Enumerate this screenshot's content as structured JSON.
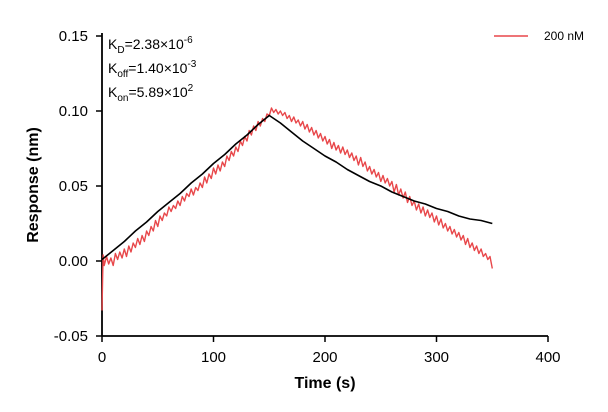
{
  "chart_data": {
    "type": "line",
    "xlabel": "Time (s)",
    "ylabel": "Response (nm)",
    "xlim": [
      0,
      400
    ],
    "ylim": [
      -0.05,
      0.15
    ],
    "x_ticks": [
      0,
      100,
      200,
      300,
      400
    ],
    "y_ticks": [
      -0.05,
      0.0,
      0.05,
      0.1,
      0.15
    ],
    "x_tick_labels": [
      "0",
      "100",
      "200",
      "300",
      "400"
    ],
    "y_tick_labels": [
      "-0.05",
      "0.00",
      "0.05",
      "0.10",
      "0.15"
    ],
    "grid": false,
    "legend_position": "top-right",
    "annotations": [
      {
        "base": "K",
        "sub": "D",
        "value": "=2.38×10",
        "exp": "-6"
      },
      {
        "base": "K",
        "sub": "off",
        "value": "=1.40×10",
        "exp": "-3"
      },
      {
        "base": "K",
        "sub": "on",
        "value": "=5.89×10",
        "exp": "2"
      }
    ],
    "series": [
      {
        "name": "200 nM",
        "color": "#e8474a",
        "points": [
          [
            0,
            -0.033
          ],
          [
            0.5,
            -0.012
          ],
          [
            1,
            0.004
          ],
          [
            2,
            -0.003
          ],
          [
            4,
            0.003
          ],
          [
            6,
            -0.002
          ],
          [
            8,
            0.002
          ],
          [
            10,
            -0.003
          ],
          [
            12,
            0.005
          ],
          [
            14,
            0.001
          ],
          [
            16,
            0.006
          ],
          [
            18,
            0.002
          ],
          [
            20,
            0.008
          ],
          [
            22,
            0.003
          ],
          [
            24,
            0.01
          ],
          [
            26,
            0.006
          ],
          [
            28,
            0.012
          ],
          [
            30,
            0.009
          ],
          [
            32,
            0.015
          ],
          [
            34,
            0.011
          ],
          [
            36,
            0.017
          ],
          [
            38,
            0.013
          ],
          [
            40,
            0.02
          ],
          [
            42,
            0.017
          ],
          [
            44,
            0.023
          ],
          [
            46,
            0.02
          ],
          [
            48,
            0.027
          ],
          [
            50,
            0.023
          ],
          [
            52,
            0.03
          ],
          [
            54,
            0.027
          ],
          [
            56,
            0.032
          ],
          [
            58,
            0.03
          ],
          [
            60,
            0.036
          ],
          [
            62,
            0.033
          ],
          [
            64,
            0.037
          ],
          [
            66,
            0.035
          ],
          [
            68,
            0.04
          ],
          [
            70,
            0.037
          ],
          [
            72,
            0.043
          ],
          [
            74,
            0.04
          ],
          [
            76,
            0.045
          ],
          [
            78,
            0.043
          ],
          [
            80,
            0.048
          ],
          [
            82,
            0.044
          ],
          [
            84,
            0.049
          ],
          [
            86,
            0.047
          ],
          [
            88,
            0.052
          ],
          [
            90,
            0.049
          ],
          [
            92,
            0.056
          ],
          [
            94,
            0.052
          ],
          [
            96,
            0.058
          ],
          [
            98,
            0.055
          ],
          [
            100,
            0.062
          ],
          [
            102,
            0.058
          ],
          [
            104,
            0.064
          ],
          [
            106,
            0.06
          ],
          [
            108,
            0.066
          ],
          [
            110,
            0.063
          ],
          [
            112,
            0.07
          ],
          [
            114,
            0.067
          ],
          [
            116,
            0.073
          ],
          [
            118,
            0.07
          ],
          [
            120,
            0.076
          ],
          [
            122,
            0.073
          ],
          [
            124,
            0.08
          ],
          [
            126,
            0.077
          ],
          [
            128,
            0.083
          ],
          [
            130,
            0.08
          ],
          [
            132,
            0.087
          ],
          [
            134,
            0.084
          ],
          [
            136,
            0.09
          ],
          [
            138,
            0.087
          ],
          [
            140,
            0.093
          ],
          [
            142,
            0.09
          ],
          [
            144,
            0.095
          ],
          [
            146,
            0.093
          ],
          [
            148,
            0.098
          ],
          [
            150,
            0.097
          ],
          [
            152,
            0.102
          ],
          [
            154,
            0.099
          ],
          [
            156,
            0.101
          ],
          [
            158,
            0.098
          ],
          [
            160,
            0.1
          ],
          [
            162,
            0.097
          ],
          [
            164,
            0.099
          ],
          [
            166,
            0.095
          ],
          [
            168,
            0.097
          ],
          [
            170,
            0.093
          ],
          [
            172,
            0.096
          ],
          [
            174,
            0.092
          ],
          [
            176,
            0.094
          ],
          [
            178,
            0.09
          ],
          [
            180,
            0.093
          ],
          [
            182,
            0.088
          ],
          [
            184,
            0.091
          ],
          [
            186,
            0.086
          ],
          [
            188,
            0.089
          ],
          [
            190,
            0.084
          ],
          [
            192,
            0.087
          ],
          [
            194,
            0.082
          ],
          [
            196,
            0.085
          ],
          [
            198,
            0.08
          ],
          [
            200,
            0.083
          ],
          [
            202,
            0.078
          ],
          [
            204,
            0.081
          ],
          [
            206,
            0.075
          ],
          [
            208,
            0.079
          ],
          [
            210,
            0.074
          ],
          [
            212,
            0.077
          ],
          [
            214,
            0.072
          ],
          [
            216,
            0.076
          ],
          [
            218,
            0.071
          ],
          [
            220,
            0.074
          ],
          [
            222,
            0.069
          ],
          [
            224,
            0.072
          ],
          [
            226,
            0.067
          ],
          [
            228,
            0.07
          ],
          [
            230,
            0.064
          ],
          [
            232,
            0.069
          ],
          [
            234,
            0.063
          ],
          [
            236,
            0.066
          ],
          [
            238,
            0.06
          ],
          [
            240,
            0.063
          ],
          [
            242,
            0.058
          ],
          [
            244,
            0.061
          ],
          [
            246,
            0.056
          ],
          [
            248,
            0.059
          ],
          [
            250,
            0.053
          ],
          [
            252,
            0.057
          ],
          [
            254,
            0.052
          ],
          [
            256,
            0.055
          ],
          [
            258,
            0.05
          ],
          [
            260,
            0.053
          ],
          [
            262,
            0.046
          ],
          [
            264,
            0.051
          ],
          [
            266,
            0.044
          ],
          [
            268,
            0.048
          ],
          [
            270,
            0.042
          ],
          [
            272,
            0.046
          ],
          [
            274,
            0.039
          ],
          [
            276,
            0.043
          ],
          [
            278,
            0.037
          ],
          [
            280,
            0.04
          ],
          [
            282,
            0.034
          ],
          [
            284,
            0.038
          ],
          [
            286,
            0.032
          ],
          [
            288,
            0.036
          ],
          [
            290,
            0.03
          ],
          [
            292,
            0.034
          ],
          [
            294,
            0.029
          ],
          [
            296,
            0.032
          ],
          [
            298,
            0.026
          ],
          [
            300,
            0.03
          ],
          [
            302,
            0.024
          ],
          [
            304,
            0.028
          ],
          [
            306,
            0.022
          ],
          [
            308,
            0.025
          ],
          [
            310,
            0.02
          ],
          [
            312,
            0.023
          ],
          [
            314,
            0.018
          ],
          [
            316,
            0.021
          ],
          [
            318,
            0.016
          ],
          [
            320,
            0.019
          ],
          [
            322,
            0.014
          ],
          [
            324,
            0.017
          ],
          [
            326,
            0.011
          ],
          [
            328,
            0.015
          ],
          [
            330,
            0.009
          ],
          [
            332,
            0.012
          ],
          [
            334,
            0.007
          ],
          [
            336,
            0.01
          ],
          [
            338,
            0.005
          ],
          [
            340,
            0.008
          ],
          [
            342,
            0.003
          ],
          [
            344,
            0.005
          ],
          [
            346,
            0.001
          ],
          [
            348,
            0.003
          ],
          [
            350,
            -0.005
          ]
        ]
      },
      {
        "name": "",
        "color": "#000000",
        "points": [
          [
            0,
            0.001
          ],
          [
            10,
            0.007
          ],
          [
            20,
            0.013
          ],
          [
            30,
            0.02
          ],
          [
            40,
            0.026
          ],
          [
            50,
            0.033
          ],
          [
            60,
            0.039
          ],
          [
            70,
            0.045
          ],
          [
            80,
            0.052
          ],
          [
            90,
            0.058
          ],
          [
            100,
            0.065
          ],
          [
            110,
            0.071
          ],
          [
            120,
            0.078
          ],
          [
            130,
            0.084
          ],
          [
            140,
            0.091
          ],
          [
            150,
            0.097
          ],
          [
            160,
            0.092
          ],
          [
            170,
            0.086
          ],
          [
            180,
            0.08
          ],
          [
            190,
            0.075
          ],
          [
            200,
            0.07
          ],
          [
            210,
            0.066
          ],
          [
            220,
            0.061
          ],
          [
            230,
            0.057
          ],
          [
            240,
            0.053
          ],
          [
            250,
            0.05
          ],
          [
            260,
            0.046
          ],
          [
            270,
            0.043
          ],
          [
            280,
            0.04
          ],
          [
            290,
            0.038
          ],
          [
            300,
            0.035
          ],
          [
            310,
            0.033
          ],
          [
            320,
            0.03
          ],
          [
            330,
            0.028
          ],
          [
            340,
            0.027
          ],
          [
            350,
            0.025
          ]
        ]
      }
    ]
  }
}
